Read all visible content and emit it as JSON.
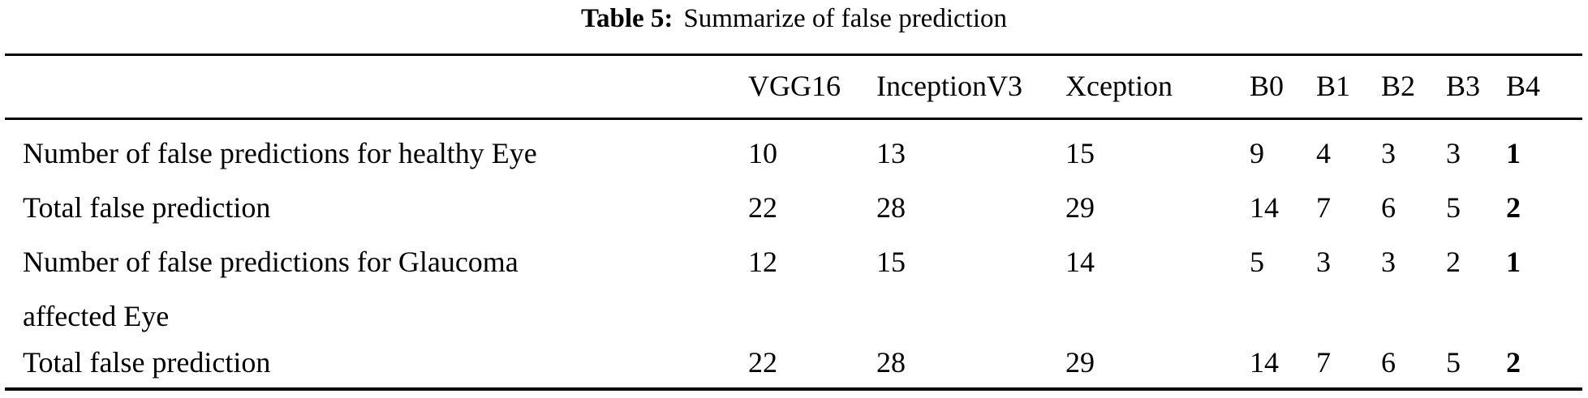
{
  "caption": {
    "label": "Table 5:",
    "text": "Summarize of false prediction"
  },
  "table": {
    "headers": [
      "VGG16",
      "InceptionV3",
      "Xception",
      "B0",
      "B1",
      "B2",
      "B3",
      "B4"
    ],
    "bold_column": "B4",
    "rows": [
      {
        "label_lines": [
          "Number of false predictions for healthy Eye"
        ],
        "values": [
          "10",
          "13",
          "15",
          "9",
          "4",
          "3",
          "3",
          "1"
        ]
      },
      {
        "label_lines": [
          "Total false prediction"
        ],
        "values": [
          "22",
          "28",
          "29",
          "14",
          "7",
          "6",
          "5",
          "2"
        ]
      },
      {
        "label_lines": [
          "Number of false predictions for Glaucoma",
          "affected Eye"
        ],
        "values": [
          "12",
          "15",
          "14",
          "5",
          "3",
          "3",
          "2",
          "1"
        ]
      },
      {
        "label_lines": [
          "Total false prediction"
        ],
        "values": [
          "22",
          "28",
          "29",
          "14",
          "7",
          "6",
          "5",
          "2"
        ]
      }
    ]
  }
}
